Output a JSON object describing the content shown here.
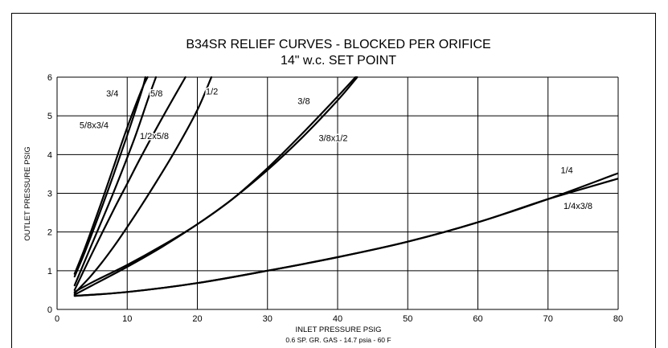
{
  "chart_data": {
    "type": "line",
    "title_line1": "B34SR RELIEF CURVES - BLOCKED PER ORIFICE",
    "title_line2": "14\" w.c.  SET POINT",
    "xlabel": "INLET  PRESSURE PSIG",
    "xlabel_note": "0.6 SP. GR. GAS - 14.7 psia - 60 F",
    "ylabel": "OUTLET PRESSURE PSIG",
    "xlim": [
      0,
      80
    ],
    "ylim": [
      0,
      6
    ],
    "x_ticks": [
      0,
      10,
      20,
      30,
      40,
      50,
      60,
      70,
      80
    ],
    "y_ticks": [
      0,
      1,
      2,
      3,
      4,
      5,
      6
    ],
    "grid": true,
    "series": [
      {
        "name": "3/4",
        "x": [
          2.5,
          4,
          6,
          8,
          10,
          12,
          12.9
        ],
        "y": [
          0.92,
          1.6,
          2.6,
          3.65,
          4.7,
          5.65,
          6.0
        ]
      },
      {
        "name": "5/8x3/4",
        "x": [
          2.5,
          4,
          6,
          8,
          10,
          12,
          12.6
        ],
        "y": [
          0.85,
          1.5,
          2.45,
          3.45,
          4.5,
          5.6,
          6.0
        ]
      },
      {
        "name": "5/8",
        "x": [
          2.5,
          5,
          8,
          11,
          13,
          14.1
        ],
        "y": [
          0.62,
          1.7,
          3.0,
          4.4,
          5.45,
          6.0
        ]
      },
      {
        "name": "1/2x5/8",
        "x": [
          2.5,
          5,
          8,
          10,
          12,
          15,
          18.3
        ],
        "y": [
          0.5,
          1.45,
          2.55,
          3.25,
          3.95,
          4.95,
          6.0
        ]
      },
      {
        "name": "1/2",
        "x": [
          2.5,
          5,
          8,
          11,
          14,
          17,
          20,
          22
        ],
        "y": [
          0.42,
          0.9,
          1.6,
          2.4,
          3.25,
          4.15,
          5.15,
          6.0
        ]
      },
      {
        "name": "3/8",
        "x": [
          2.5,
          5,
          10,
          15,
          20,
          25,
          30,
          35,
          40,
          42.8
        ],
        "y": [
          0.45,
          0.7,
          1.15,
          1.65,
          2.2,
          2.85,
          3.6,
          4.45,
          5.4,
          6.0
        ]
      },
      {
        "name": "3/8x1/2",
        "x": [
          2.5,
          5,
          10,
          15,
          20,
          25,
          30,
          35,
          40,
          42.8
        ],
        "y": [
          0.38,
          0.62,
          1.1,
          1.62,
          2.2,
          2.85,
          3.65,
          4.55,
          5.5,
          6.05
        ]
      },
      {
        "name": "1/4",
        "x": [
          2.5,
          10,
          20,
          30,
          40,
          50,
          60,
          70,
          80
        ],
        "y": [
          0.35,
          0.45,
          0.68,
          1.0,
          1.35,
          1.75,
          2.25,
          2.85,
          3.52
        ]
      },
      {
        "name": "1/4x3/8",
        "x": [
          2.5,
          10,
          20,
          30,
          40,
          50,
          60,
          70,
          80
        ],
        "y": [
          0.35,
          0.45,
          0.68,
          1.0,
          1.35,
          1.75,
          2.25,
          2.85,
          3.38
        ]
      }
    ],
    "curve_labels": [
      {
        "text": "3/4",
        "x": 7,
        "y": 5.5
      },
      {
        "text": "5/8",
        "x": 13.3,
        "y": 5.5
      },
      {
        "text": "1/2",
        "x": 21.2,
        "y": 5.55
      },
      {
        "text": "5/8x3/4",
        "x": 3.2,
        "y": 4.68
      },
      {
        "text": "1/2x5/8",
        "x": 11.8,
        "y": 4.4
      },
      {
        "text": "3/8",
        "x": 34.3,
        "y": 5.3
      },
      {
        "text": "3/8x1/2",
        "x": 37.3,
        "y": 4.35
      },
      {
        "text": "1/4",
        "x": 71.8,
        "y": 3.52
      },
      {
        "text": "1/4x3/8",
        "x": 72.2,
        "y": 2.6
      }
    ]
  }
}
